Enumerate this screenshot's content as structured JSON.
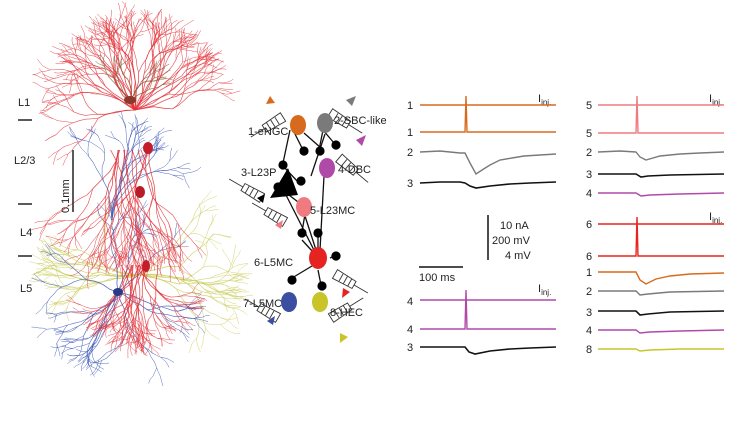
{
  "layers": {
    "l1": "L1",
    "l23": "L2/3",
    "l4": "L4",
    "l5": "L5",
    "scale": "0.1mm"
  },
  "colors": {
    "eNGC": "#d86a1e",
    "SBC": "#7a7a7a",
    "L23P": "#000000",
    "DBC": "#b04aa8",
    "L23MC": "#ef7b80",
    "L5MC6": "#e52421",
    "L5MC7": "#3b4ea2",
    "HEC": "#c8c42a",
    "axon_red": "#e2323a",
    "axon_blue": "#3a54b5",
    "axon_yellow": "#c9cd5a"
  },
  "cells": {
    "c1": "1-eNGC",
    "c2": "2-SBC-like",
    "c3": "3-L23P",
    "c4": "4-DBC",
    "c5": "5-L23MC",
    "c6": "6-L5MC",
    "c7": "7-L5MC",
    "c8": "8-HEC"
  },
  "traces": {
    "inj": "I",
    "inj_sub": "inj.",
    "p1": [
      "1",
      "1",
      "2",
      "3"
    ],
    "p2": [
      "5",
      "5",
      "2",
      "3",
      "4"
    ],
    "p3": [
      "6",
      "6",
      "1",
      "2",
      "3",
      "4",
      "8"
    ],
    "p4": [
      "4",
      "4",
      "3"
    ]
  },
  "scalebar": {
    "current": "10 nA",
    "voltage_big": "200 mV",
    "voltage_small": "4 mV",
    "time": "100 ms"
  }
}
